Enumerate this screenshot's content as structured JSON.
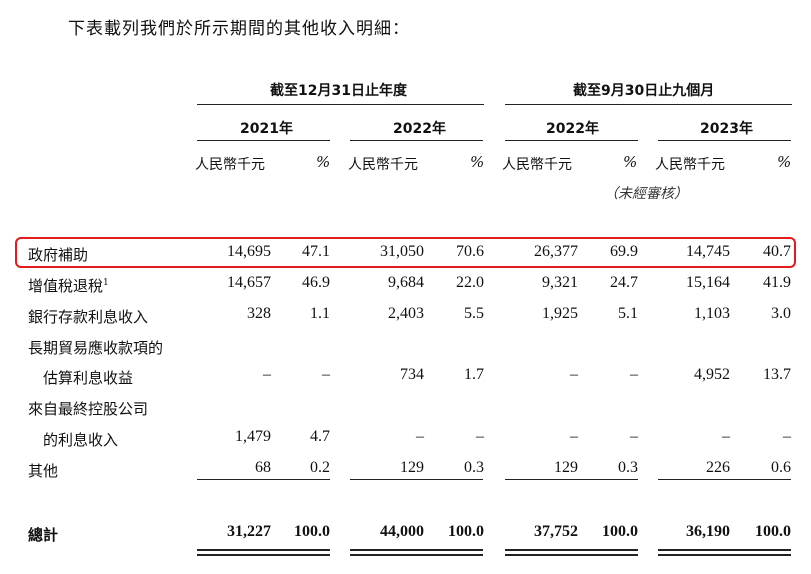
{
  "intro": "下表載列我們於所示期間的其他收入明細：",
  "periods": [
    {
      "label": "截至12月31日止年度"
    },
    {
      "label": "截至9月30日止九個月"
    }
  ],
  "years": [
    "2021年",
    "2022年",
    "2022年",
    "2023年"
  ],
  "unit_label": "人民幣千元",
  "pct_label": "%",
  "unaudited_note": "（未經審核）",
  "rows": [
    {
      "label": "政府補助",
      "sup": "",
      "values": [
        "14,695",
        "47.1",
        "31,050",
        "70.6",
        "26,377",
        "69.9",
        "14,745",
        "40.7"
      ]
    },
    {
      "label": "增值稅退稅",
      "sup": "1",
      "values": [
        "14,657",
        "46.9",
        "9,684",
        "22.0",
        "9,321",
        "24.7",
        "15,164",
        "41.9"
      ]
    },
    {
      "label": "銀行存款利息收入",
      "sup": "",
      "values": [
        "328",
        "1.1",
        "2,403",
        "5.5",
        "1,925",
        "5.1",
        "1,103",
        "3.0"
      ]
    },
    {
      "label": "長期貿易應收款項的",
      "sup": "",
      "values": [
        "",
        "",
        "",
        "",
        "",
        "",
        "",
        ""
      ]
    },
    {
      "label": "　估算利息收益",
      "sup": "",
      "values": [
        "–",
        "–",
        "734",
        "1.7",
        "–",
        "–",
        "4,952",
        "13.7"
      ]
    },
    {
      "label": "來自最終控股公司",
      "sup": "",
      "values": [
        "",
        "",
        "",
        "",
        "",
        "",
        "",
        ""
      ]
    },
    {
      "label": "　的利息收入",
      "sup": "",
      "values": [
        "1,479",
        "4.7",
        "–",
        "–",
        "–",
        "–",
        "–",
        "–"
      ]
    },
    {
      "label": "其他",
      "sup": "",
      "values": [
        "68",
        "0.2",
        "129",
        "0.3",
        "129",
        "0.3",
        "226",
        "0.6"
      ]
    }
  ],
  "total": {
    "label": "總計",
    "values": [
      "31,227",
      "100.0",
      "44,000",
      "100.0",
      "37,752",
      "100.0",
      "36,190",
      "100.0"
    ]
  },
  "highlight_color": "#e31b1b"
}
